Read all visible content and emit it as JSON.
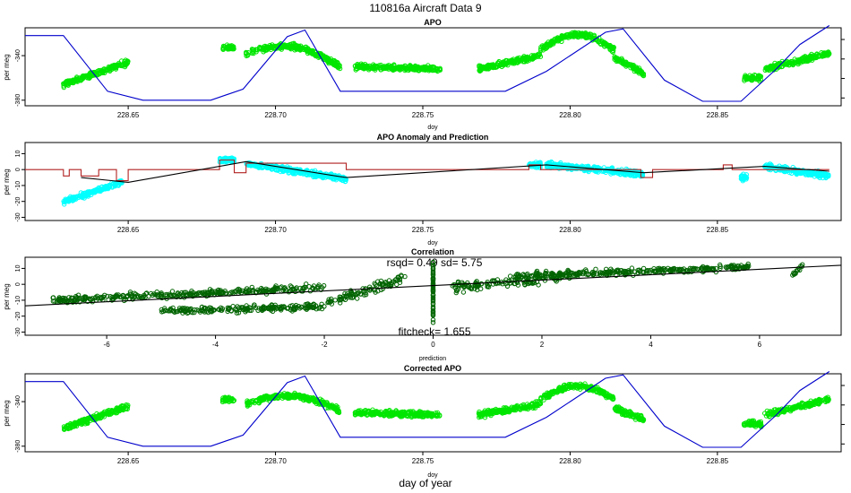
{
  "page_title": "110816a   Aircraft Data 9",
  "bottom_label": "day of year",
  "colors": {
    "bright_green": "#00e600",
    "dark_green": "#006400",
    "cyan": "#00ffff",
    "blue": "#0000cc",
    "red": "#b22222",
    "black": "#000000"
  },
  "chart_data": [
    {
      "type": "scatter",
      "title": "APO",
      "xlabel": "doy",
      "ylabel": "per meg",
      "xlim": [
        228.615,
        228.892
      ],
      "ylim": [
        -385,
        -315
      ],
      "xticks": [
        228.65,
        228.7,
        228.75,
        228.8,
        228.85
      ],
      "yticks": [
        -380,
        -340
      ],
      "segments": [
        {
          "x": [
            228.628,
            228.65
          ],
          "y0": -366,
          "y1": -346
        },
        {
          "x": [
            228.682,
            228.686
          ],
          "y0": -333,
          "y1": -333
        },
        {
          "x": [
            228.69,
            228.722
          ],
          "y0": -338,
          "y1": -350,
          "bump": 12
        },
        {
          "x": [
            228.727,
            228.756
          ],
          "y0": -350,
          "y1": -352
        },
        {
          "x": [
            228.769,
            228.79
          ],
          "y0": -352,
          "y1": -340
        },
        {
          "x": [
            228.79,
            228.815
          ],
          "y0": -335,
          "y1": -335,
          "bump": 14
        },
        {
          "x": [
            228.815,
            228.825
          ],
          "y0": -342,
          "y1": -356
        },
        {
          "x": [
            228.859,
            228.865
          ],
          "y0": -360,
          "y1": -360
        },
        {
          "x": [
            228.866,
            228.888
          ],
          "y0": -352,
          "y1": -338
        }
      ],
      "line": {
        "name": "blue curve",
        "x": [
          228.615,
          228.628,
          228.643,
          228.655,
          228.678,
          228.689,
          228.704,
          228.71,
          228.722,
          228.778,
          228.792,
          228.812,
          228.818,
          228.832,
          228.845,
          228.858,
          228.87,
          228.878,
          228.888
        ],
        "y": [
          -322,
          -322,
          -372,
          -380,
          -380,
          -370,
          -323,
          -317,
          -372,
          -372,
          -354,
          -319,
          -316,
          -362,
          -381,
          -381,
          -352,
          -330,
          -313
        ]
      }
    },
    {
      "type": "scatter",
      "title": "APO Anomaly and Prediction",
      "xlabel": "doy",
      "ylabel": "per meg",
      "xlim": [
        228.615,
        228.892
      ],
      "ylim": [
        -32,
        17
      ],
      "xticks": [
        228.65,
        228.7,
        228.75,
        228.8,
        228.85
      ],
      "yticks": [
        -30,
        -20,
        -10,
        0,
        10
      ],
      "segments": [
        {
          "x": [
            228.628,
            228.648
          ],
          "y0": -20,
          "y1": -8
        },
        {
          "x": [
            228.681,
            228.686
          ],
          "y0": 6,
          "y1": 6
        },
        {
          "x": [
            228.69,
            228.724
          ],
          "y0": 4,
          "y1": -6
        },
        {
          "x": [
            228.786,
            228.79
          ],
          "y0": 3,
          "y1": 3
        },
        {
          "x": [
            228.792,
            228.825
          ],
          "y0": 3,
          "y1": -3
        },
        {
          "x": [
            228.858,
            228.86
          ],
          "y0": -5,
          "y1": -5
        },
        {
          "x": [
            228.866,
            228.888
          ],
          "y0": 2,
          "y1": -4
        }
      ],
      "red_line": {
        "x": [
          228.615,
          228.628,
          228.628,
          228.63,
          228.63,
          228.634,
          228.634,
          228.64,
          228.64,
          228.646,
          228.646,
          228.65,
          228.65,
          228.681,
          228.681,
          228.686,
          228.686,
          228.69,
          228.69,
          228.724,
          228.724,
          228.786,
          228.786,
          228.79,
          228.79,
          228.824,
          228.824,
          228.828,
          228.828,
          228.83,
          228.83,
          228.852,
          228.852,
          228.855,
          228.855,
          228.858,
          228.858,
          228.888
        ],
        "y": [
          0,
          0,
          -4,
          -4,
          0,
          0,
          -4,
          -4,
          0,
          0,
          -7,
          -7,
          0,
          0,
          6,
          6,
          -2,
          -2,
          4,
          4,
          0,
          0,
          3,
          3,
          0,
          0,
          -5,
          -5,
          0,
          0,
          0,
          0,
          3,
          3,
          0,
          0,
          0,
          0
        ]
      },
      "black_line": {
        "x": [
          228.634,
          228.65,
          228.69,
          228.724,
          228.792,
          228.825,
          228.866,
          228.888
        ],
        "y": [
          -5,
          -8,
          5,
          -5,
          3,
          -2,
          2,
          -1
        ]
      }
    },
    {
      "type": "scatter",
      "title": "Correlation",
      "xlabel": "prediction",
      "ylabel": "per meg",
      "xlim": [
        -7.5,
        7.5
      ],
      "ylim": [
        -32,
        17
      ],
      "xticks": [
        -6,
        -4,
        -2,
        0,
        2,
        4,
        6
      ],
      "yticks": [
        -30,
        -20,
        -10,
        0,
        10
      ],
      "rsqd_text": "rsqd= 0.49 sd= 5.75",
      "fitcheck_text": "fitcheck= 1.655",
      "fit_line": {
        "x": [
          -7.5,
          7.5
        ],
        "y": [
          -13.5,
          12
        ]
      },
      "clusters": [
        {
          "x": [
            -7.0,
            -2.0
          ],
          "y0": -10,
          "y1": -2,
          "spread": 3
        },
        {
          "x": [
            -5.0,
            -2.0
          ],
          "y0": -17,
          "y1": -14,
          "spread": 3
        },
        {
          "x": [
            -2.0,
            -0.5
          ],
          "y0": -12,
          "y1": 4,
          "spread": 4
        },
        {
          "x": [
            0.3,
            2.5
          ],
          "y0": -3,
          "y1": 6,
          "spread": 5
        },
        {
          "x": [
            1.5,
            5.8
          ],
          "y0": 5,
          "y1": 11,
          "spread": 3
        },
        {
          "x": [
            6.6,
            6.8
          ],
          "y0": 6,
          "y1": 12,
          "spread": 2
        }
      ],
      "zero_column": {
        "x": 0,
        "ymin": -25,
        "ymax": 15
      }
    },
    {
      "type": "scatter",
      "title": "Corrected APO",
      "xlabel": "doy",
      "ylabel": "per meg",
      "xlim": [
        228.615,
        228.892
      ],
      "ylim": [
        -385,
        -315
      ],
      "xticks": [
        228.65,
        228.7,
        228.75,
        228.8,
        228.85
      ],
      "yticks": [
        -380,
        -340
      ],
      "segments": [
        {
          "x": [
            228.628,
            228.65
          ],
          "y0": -364,
          "y1": -344
        },
        {
          "x": [
            228.682,
            228.686
          ],
          "y0": -338,
          "y1": -338
        },
        {
          "x": [
            228.69,
            228.722
          ],
          "y0": -342,
          "y1": -348,
          "bump": 10
        },
        {
          "x": [
            228.727,
            228.756
          ],
          "y0": -350,
          "y1": -352
        },
        {
          "x": [
            228.769,
            228.79
          ],
          "y0": -352,
          "y1": -342
        },
        {
          "x": [
            228.79,
            228.815
          ],
          "y0": -338,
          "y1": -338,
          "bump": 12
        },
        {
          "x": [
            228.815,
            228.825
          ],
          "y0": -346,
          "y1": -356
        },
        {
          "x": [
            228.859,
            228.865
          ],
          "y0": -360,
          "y1": -360
        },
        {
          "x": [
            228.866,
            228.888
          ],
          "y0": -352,
          "y1": -338
        }
      ],
      "line": {
        "name": "blue curve",
        "x": [
          228.615,
          228.628,
          228.643,
          228.655,
          228.678,
          228.689,
          228.704,
          228.71,
          228.722,
          228.778,
          228.792,
          228.812,
          228.818,
          228.832,
          228.845,
          228.858,
          228.87,
          228.878,
          228.888
        ],
        "y": [
          -322,
          -322,
          -372,
          -380,
          -380,
          -370,
          -323,
          -317,
          -372,
          -372,
          -354,
          -319,
          -316,
          -362,
          -381,
          -381,
          -352,
          -330,
          -313
        ]
      }
    }
  ]
}
